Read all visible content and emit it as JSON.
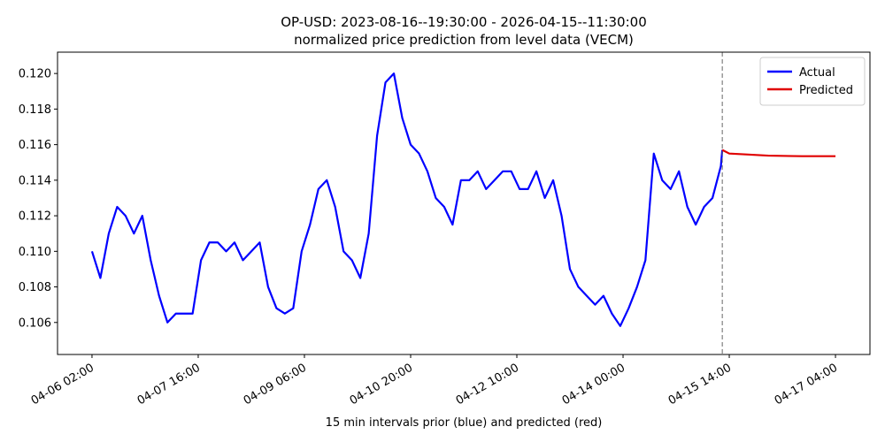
{
  "chart_data": {
    "type": "line",
    "title": "OP-USD: 2023-08-16--19:30:00 - 2026-04-15--11:30:00",
    "subtitle": "normalized price prediction from level data (VECM)",
    "x_label": "15 min intervals prior (blue) and predicted (red)",
    "xlim": [
      "04-05 13:40",
      "04-17 16:20"
    ],
    "ylim": [
      0.1042,
      0.1212
    ],
    "xticks": [
      "04-06 02:00",
      "04-07 16:00",
      "04-09 06:00",
      "04-10 20:00",
      "04-12 10:00",
      "04-14 00:00",
      "04-15 14:00",
      "04-17 04:00"
    ],
    "yticks": [
      {
        "value": 0.106,
        "label": "0.106"
      },
      {
        "value": 0.108,
        "label": "0.108"
      },
      {
        "value": 0.11,
        "label": "0.110"
      },
      {
        "value": 0.112,
        "label": "0.112"
      },
      {
        "value": 0.114,
        "label": "0.114"
      },
      {
        "value": 0.116,
        "label": "0.116"
      },
      {
        "value": 0.118,
        "label": "0.118"
      },
      {
        "value": 0.12,
        "label": "0.120"
      }
    ],
    "legend": "upper right",
    "series": [
      {
        "name": "Actual",
        "color": "#0000ff",
        "x": [
          "04-06 02:00",
          "04-06 05:00",
          "04-06 08:00",
          "04-06 11:00",
          "04-06 14:00",
          "04-06 17:00",
          "04-06 20:00",
          "04-06 23:00",
          "04-07 02:00",
          "04-07 05:00",
          "04-07 08:00",
          "04-07 11:00",
          "04-07 14:00",
          "04-07 17:00",
          "04-07 20:00",
          "04-07 23:00",
          "04-08 02:00",
          "04-08 05:00",
          "04-08 08:00",
          "04-08 11:00",
          "04-08 14:00",
          "04-08 17:00",
          "04-08 20:00",
          "04-08 23:00",
          "04-09 02:00",
          "04-09 05:00",
          "04-09 08:00",
          "04-09 11:00",
          "04-09 14:00",
          "04-09 17:00",
          "04-09 20:00",
          "04-09 23:00",
          "04-10 02:00",
          "04-10 05:00",
          "04-10 08:00",
          "04-10 11:00",
          "04-10 14:00",
          "04-10 17:00",
          "04-10 20:00",
          "04-10 23:00",
          "04-11 02:00",
          "04-11 05:00",
          "04-11 08:00",
          "04-11 11:00",
          "04-11 14:00",
          "04-11 17:00",
          "04-11 20:00",
          "04-11 23:00",
          "04-12 02:00",
          "04-12 05:00",
          "04-12 08:00",
          "04-12 11:00",
          "04-12 14:00",
          "04-12 17:00",
          "04-12 20:00",
          "04-12 23:00",
          "04-13 02:00",
          "04-13 05:00",
          "04-13 08:00",
          "04-13 11:00",
          "04-13 14:00",
          "04-13 17:00",
          "04-13 20:00",
          "04-13 23:00",
          "04-14 02:00",
          "04-14 05:00",
          "04-14 08:00",
          "04-14 11:00",
          "04-14 14:00",
          "04-14 17:00",
          "04-14 20:00",
          "04-14 23:00",
          "04-15 02:00",
          "04-15 05:00",
          "04-15 08:00",
          "04-15 11:00",
          "04-15 11:30"
        ],
        "values": [
          0.11,
          0.1085,
          0.111,
          0.1125,
          0.112,
          0.111,
          0.112,
          0.1095,
          0.1075,
          0.106,
          0.1065,
          0.1065,
          0.1065,
          0.1095,
          0.1105,
          0.1105,
          0.11,
          0.1105,
          0.1095,
          0.11,
          0.1105,
          0.108,
          0.1068,
          0.1065,
          0.1068,
          0.11,
          0.1115,
          0.1135,
          0.114,
          0.1125,
          0.11,
          0.1095,
          0.1085,
          0.111,
          0.1165,
          0.1195,
          0.12,
          0.1175,
          0.116,
          0.1155,
          0.1145,
          0.113,
          0.1125,
          0.1115,
          0.114,
          0.114,
          0.1145,
          0.1135,
          0.114,
          0.1145,
          0.1145,
          0.1135,
          0.1135,
          0.1145,
          0.113,
          0.114,
          0.112,
          0.109,
          0.108,
          0.1075,
          0.107,
          0.1075,
          0.1065,
          0.1058,
          0.1068,
          0.108,
          0.1095,
          0.1155,
          0.114,
          0.1135,
          0.1145,
          0.1125,
          0.1115,
          0.1125,
          0.113,
          0.1148,
          0.1157
        ]
      },
      {
        "name": "Predicted",
        "color": "#e00000",
        "x": [
          "04-15 11:30",
          "04-15 14:00",
          "04-15 20:00",
          "04-16 04:00",
          "04-16 16:00",
          "04-17 04:00"
        ],
        "values": [
          0.1157,
          0.1155,
          0.11545,
          0.11538,
          0.11535,
          0.11535
        ]
      }
    ]
  }
}
